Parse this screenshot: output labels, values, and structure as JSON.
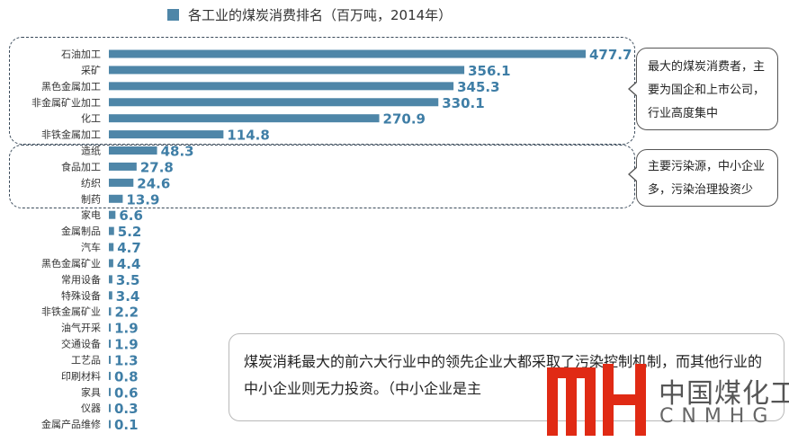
{
  "chart_data": {
    "type": "bar",
    "orientation": "horizontal",
    "legend": "各工业的煤炭消费排名（百万吨，2014年）",
    "categories": [
      "石油加工",
      "采矿",
      "黑色金属加工",
      "非金属矿业加工",
      "化工",
      "非铁金属加工",
      "造纸",
      "食品加工",
      "纺织",
      "制药",
      "家电",
      "金属制品",
      "汽车",
      "黑色金属矿业",
      "常用设备",
      "特殊设备",
      "非铁金属矿业",
      "油气开采",
      "交通设备",
      "工艺品",
      "印刷材料",
      "家具",
      "仪器",
      "金属产品维修"
    ],
    "values": [
      477.7,
      356.1,
      345.3,
      330.1,
      270.9,
      114.8,
      48.3,
      27.8,
      24.6,
      13.9,
      6.6,
      5.2,
      4.7,
      4.4,
      3.5,
      3.4,
      2.2,
      1.9,
      1.9,
      1.3,
      0.8,
      0.6,
      0.3,
      0.1
    ],
    "value_labels": [
      "477.7",
      "356.1",
      "345.3",
      "330.1",
      "270.9",
      "114.8",
      "48.3",
      "27.8",
      "24.6",
      "13.9",
      "6.6",
      "5.2",
      "4.7",
      "4.4",
      "3.5",
      "3.4",
      "2.2",
      "1.9",
      "1.9",
      "1.3",
      "0.8",
      "0.6",
      "0.3",
      "0.1"
    ],
    "bar_color": "#4e86a8",
    "label_color": "#3f7ea6"
  },
  "callouts": [
    {
      "text": "最大的煤炭消费者，主要为国企和上市公司，行业高度集中"
    },
    {
      "text": "主要污染源，中小企业多，污染治理投资少"
    }
  ],
  "note": {
    "text": "煤炭消耗最大的前六大行业中的领先企业大都采取了污染控制机制，而其他行业的中小企业则无力投资。（中小企业是主"
  },
  "logo": {
    "mark": "MH",
    "name": "中国煤化工",
    "abbr": "CNMHG",
    "color": "#e02a14"
  }
}
